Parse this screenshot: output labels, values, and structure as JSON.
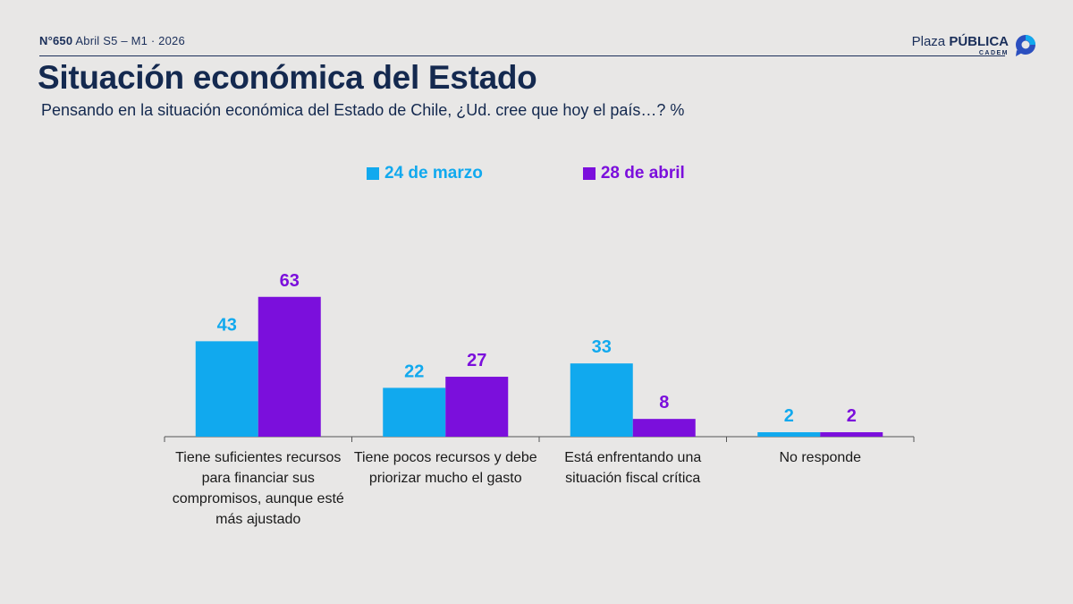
{
  "header": {
    "edition_number": "N°650",
    "edition_rest": "Abril S5 – M1 · 2026",
    "brand_light": "Plaza ",
    "brand_bold": "PÚBLICA",
    "brand_sub": "CADEM"
  },
  "colors": {
    "series1": "#11a9ee",
    "series2": "#7b0fdc",
    "navy": "#14294f",
    "axis": "#555555"
  },
  "chart_data": {
    "type": "bar",
    "title": "Situación económica del Estado",
    "subtitle": "Pensando en la situación económica del Estado de Chile, ¿Ud. cree que hoy el país…? %",
    "categories": [
      "Tiene suficientes recursos para financiar sus compromisos, aunque esté más ajustado",
      "Tiene pocos recursos y debe priorizar mucho el gasto",
      "Está enfrentando una situación fiscal crítica",
      "No responde"
    ],
    "series": [
      {
        "name": "24 de marzo",
        "values": [
          43,
          22,
          33,
          2
        ]
      },
      {
        "name": "28 de abril",
        "values": [
          63,
          27,
          8,
          2
        ]
      }
    ],
    "ylim": [
      0,
      100
    ],
    "grid": false,
    "legend": "top-center",
    "data_labels": true
  }
}
